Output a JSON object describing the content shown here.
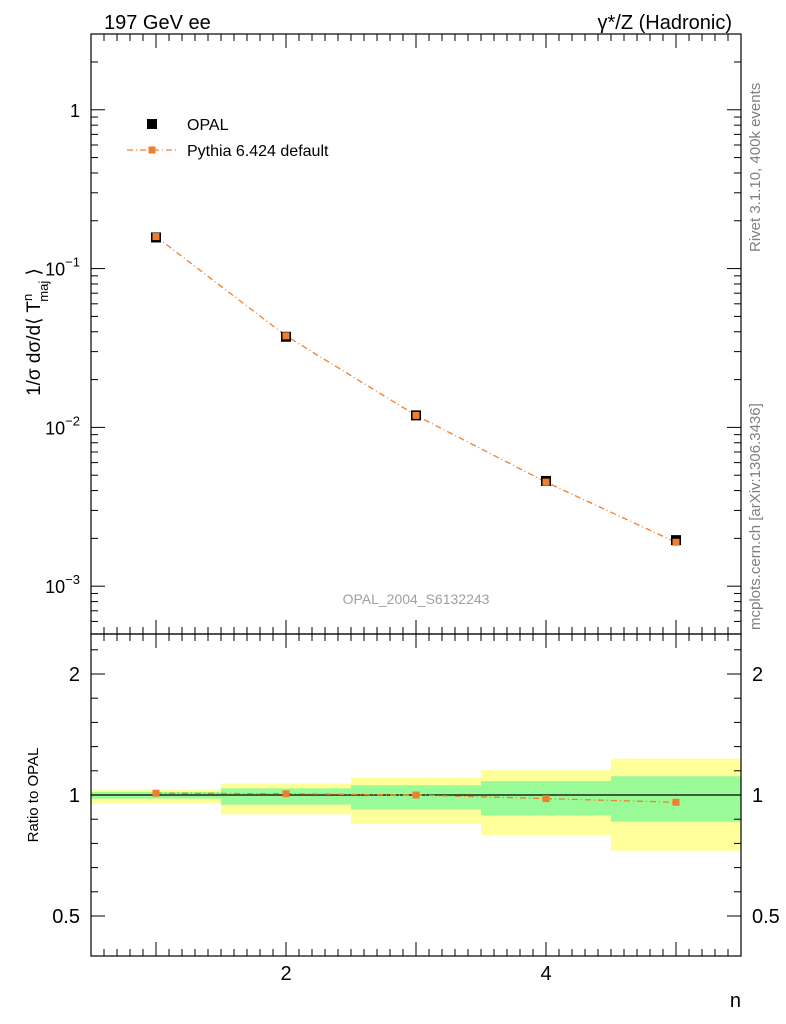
{
  "header": {
    "left": "197 GeV ee",
    "right": "γ*/Z (Hadronic)"
  },
  "side_labels": {
    "rivet": "Rivet 3.1.10,  400k events",
    "mcplots": "mcplots.cern.ch [arXiv:1306.3436]"
  },
  "watermark": "OPAL_2004_S6132243",
  "colors": {
    "data": "#000000",
    "mc": "#f07f2d",
    "band_inner": "#98fb98",
    "band_outer": "#ffff99"
  },
  "chart_data": [
    {
      "type": "scatter",
      "ylabel": "1/σ dσ/d⟨ T^n_maj ⟩",
      "yscale": "log",
      "ylim": [
        0.0005,
        3
      ],
      "xlim": [
        0.5,
        5.5
      ],
      "yticks_major": [
        {
          "value": 0.001,
          "mant": "10",
          "exp": "−3"
        },
        {
          "value": 0.01,
          "mant": "10",
          "exp": "−2"
        },
        {
          "value": 0.1,
          "mant": "10",
          "exp": "−1"
        },
        {
          "value": 1,
          "mant": "1",
          "exp": ""
        }
      ],
      "legend": {
        "position": "top-left",
        "entries": [
          {
            "label": "OPAL",
            "marker": "square",
            "color": "#000000"
          },
          {
            "label": "Pythia 6.424 default",
            "marker": "square-dashdot",
            "color": "#f07f2d"
          }
        ]
      },
      "series": [
        {
          "name": "OPAL",
          "x": [
            1,
            2,
            3,
            4,
            5
          ],
          "y": [
            0.157,
            0.0372,
            0.0119,
            0.0046,
            0.00195
          ]
        },
        {
          "name": "Pythia 6.424 default",
          "x": [
            1,
            2,
            3,
            4,
            5
          ],
          "y": [
            0.159,
            0.0377,
            0.0119,
            0.00452,
            0.00189
          ]
        }
      ]
    },
    {
      "type": "line",
      "xlabel": "n",
      "ylabel": "Ratio to OPAL",
      "ylim": [
        0.4,
        2.4
      ],
      "xlim": [
        0.5,
        5.5
      ],
      "yticks_labeled": [
        0.5,
        1,
        2
      ],
      "yticks_minor": [
        0.6,
        0.7,
        0.8,
        0.9,
        1.2,
        1.4,
        1.6,
        1.8,
        2.2
      ],
      "xticks_labeled": [
        2,
        4
      ],
      "bins": [
        {
          "lo": 0.5,
          "hi": 1.5,
          "inner": [
            0.985,
            1.025
          ],
          "outer": [
            0.965,
            1.045
          ]
        },
        {
          "lo": 1.5,
          "hi": 2.5,
          "inner": [
            0.96,
            1.055
          ],
          "outer": [
            0.92,
            1.095
          ]
        },
        {
          "lo": 2.5,
          "hi": 3.5,
          "inner": [
            0.94,
            1.08
          ],
          "outer": [
            0.88,
            1.145
          ]
        },
        {
          "lo": 3.5,
          "hi": 4.5,
          "inner": [
            0.915,
            1.115
          ],
          "outer": [
            0.835,
            1.205
          ]
        },
        {
          "lo": 4.5,
          "hi": 5.5,
          "inner": [
            0.89,
            1.155
          ],
          "outer": [
            0.77,
            1.3
          ]
        }
      ],
      "series": [
        {
          "name": "Pythia 6.424 default",
          "x": [
            1,
            2,
            3,
            4,
            5
          ],
          "y": [
            1.015,
            1.01,
            1.0,
            0.985,
            0.97
          ]
        }
      ]
    }
  ]
}
